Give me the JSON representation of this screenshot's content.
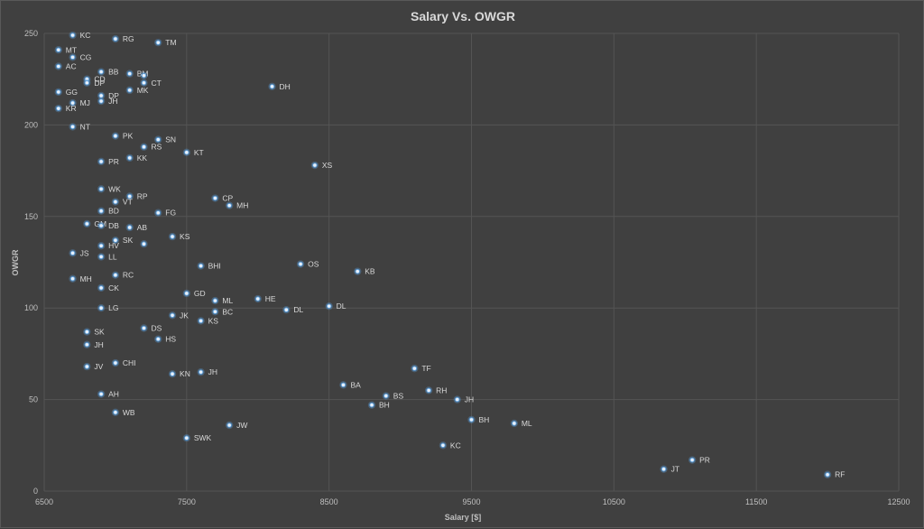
{
  "chart_data": {
    "type": "scatter",
    "title": "Salary Vs. OWGR",
    "xlabel": "Salary [$]",
    "ylabel": "OWGR",
    "xlim": [
      6500,
      12500
    ],
    "ylim": [
      0,
      250
    ],
    "xticks": [
      "6500",
      "7500",
      "8500",
      "9500",
      "10500",
      "11500",
      "12500"
    ],
    "yticks": [
      "0",
      "50",
      "100",
      "150",
      "200",
      "250"
    ],
    "grid": true,
    "marker_color": "#5b9bd5",
    "points": [
      {
        "x": 6700,
        "y": 249,
        "label": "KC"
      },
      {
        "x": 7000,
        "y": 247,
        "label": "RG"
      },
      {
        "x": 7300,
        "y": 245,
        "label": "TM"
      },
      {
        "x": 6600,
        "y": 241,
        "label": "MT"
      },
      {
        "x": 6700,
        "y": 237,
        "label": "CG"
      },
      {
        "x": 6600,
        "y": 232,
        "label": "AC"
      },
      {
        "x": 6900,
        "y": 229,
        "label": "BB"
      },
      {
        "x": 7100,
        "y": 228,
        "label": "BM"
      },
      {
        "x": 7200,
        "y": 227,
        "label": ""
      },
      {
        "x": 6800,
        "y": 225,
        "label": "CD"
      },
      {
        "x": 6800,
        "y": 223,
        "label": "DP"
      },
      {
        "x": 7200,
        "y": 223,
        "label": "CT"
      },
      {
        "x": 8100,
        "y": 221,
        "label": "DH"
      },
      {
        "x": 7100,
        "y": 219,
        "label": "MK"
      },
      {
        "x": 6600,
        "y": 218,
        "label": "GG"
      },
      {
        "x": 6900,
        "y": 216,
        "label": "DP"
      },
      {
        "x": 6900,
        "y": 213,
        "label": "JH"
      },
      {
        "x": 6700,
        "y": 212,
        "label": "MJ"
      },
      {
        "x": 6600,
        "y": 209,
        "label": "KR"
      },
      {
        "x": 6700,
        "y": 199,
        "label": "NT"
      },
      {
        "x": 7000,
        "y": 194,
        "label": "PK"
      },
      {
        "x": 7300,
        "y": 192,
        "label": "SN"
      },
      {
        "x": 7200,
        "y": 188,
        "label": "RS"
      },
      {
        "x": 7500,
        "y": 185,
        "label": "KT"
      },
      {
        "x": 7100,
        "y": 182,
        "label": "KK"
      },
      {
        "x": 6900,
        "y": 180,
        "label": "PR"
      },
      {
        "x": 8400,
        "y": 178,
        "label": "XS"
      },
      {
        "x": 6900,
        "y": 165,
        "label": "WK"
      },
      {
        "x": 7100,
        "y": 161,
        "label": "RP"
      },
      {
        "x": 7700,
        "y": 160,
        "label": "CP"
      },
      {
        "x": 7000,
        "y": 158,
        "label": "VT"
      },
      {
        "x": 7800,
        "y": 156,
        "label": "MH"
      },
      {
        "x": 6900,
        "y": 153,
        "label": "BD"
      },
      {
        "x": 7300,
        "y": 152,
        "label": "FG"
      },
      {
        "x": 6800,
        "y": 146,
        "label": "GM"
      },
      {
        "x": 6900,
        "y": 145,
        "label": "DB"
      },
      {
        "x": 7100,
        "y": 144,
        "label": "AB"
      },
      {
        "x": 7400,
        "y": 139,
        "label": "KS"
      },
      {
        "x": 7000,
        "y": 137,
        "label": "SK"
      },
      {
        "x": 7200,
        "y": 135,
        "label": ""
      },
      {
        "x": 6900,
        "y": 134,
        "label": "HV"
      },
      {
        "x": 6700,
        "y": 130,
        "label": "JS"
      },
      {
        "x": 6900,
        "y": 128,
        "label": "LL"
      },
      {
        "x": 8300,
        "y": 124,
        "label": "OS"
      },
      {
        "x": 7600,
        "y": 123,
        "label": "BHI"
      },
      {
        "x": 8700,
        "y": 120,
        "label": "KB"
      },
      {
        "x": 7000,
        "y": 118,
        "label": "RC"
      },
      {
        "x": 6700,
        "y": 116,
        "label": "MH"
      },
      {
        "x": 6900,
        "y": 111,
        "label": "CK"
      },
      {
        "x": 7500,
        "y": 108,
        "label": "GD"
      },
      {
        "x": 8000,
        "y": 105,
        "label": "HE"
      },
      {
        "x": 7700,
        "y": 104,
        "label": "ML"
      },
      {
        "x": 8500,
        "y": 101,
        "label": "DL"
      },
      {
        "x": 6900,
        "y": 100,
        "label": "LG"
      },
      {
        "x": 8200,
        "y": 99,
        "label": "DL"
      },
      {
        "x": 7700,
        "y": 98,
        "label": "BC"
      },
      {
        "x": 7400,
        "y": 96,
        "label": "JK"
      },
      {
        "x": 7600,
        "y": 93,
        "label": "KS"
      },
      {
        "x": 7200,
        "y": 89,
        "label": "DS"
      },
      {
        "x": 6800,
        "y": 87,
        "label": "SK"
      },
      {
        "x": 7300,
        "y": 83,
        "label": "HS"
      },
      {
        "x": 6800,
        "y": 80,
        "label": "JH"
      },
      {
        "x": 7000,
        "y": 70,
        "label": "CHI"
      },
      {
        "x": 6800,
        "y": 68,
        "label": "JV"
      },
      {
        "x": 9100,
        "y": 67,
        "label": "TF"
      },
      {
        "x": 7600,
        "y": 65,
        "label": "JH"
      },
      {
        "x": 7400,
        "y": 64,
        "label": "KN"
      },
      {
        "x": 8600,
        "y": 58,
        "label": "BA"
      },
      {
        "x": 9200,
        "y": 55,
        "label": "RH"
      },
      {
        "x": 6900,
        "y": 53,
        "label": "AH"
      },
      {
        "x": 8900,
        "y": 52,
        "label": "BS"
      },
      {
        "x": 9400,
        "y": 50,
        "label": "JH"
      },
      {
        "x": 8800,
        "y": 47,
        "label": "BH"
      },
      {
        "x": 7000,
        "y": 43,
        "label": "WB"
      },
      {
        "x": 9500,
        "y": 39,
        "label": "BH"
      },
      {
        "x": 9800,
        "y": 37,
        "label": "ML"
      },
      {
        "x": 7800,
        "y": 36,
        "label": "JW"
      },
      {
        "x": 7500,
        "y": 29,
        "label": "SWK"
      },
      {
        "x": 9300,
        "y": 25,
        "label": "KC"
      },
      {
        "x": 11050,
        "y": 17,
        "label": "PR"
      },
      {
        "x": 10850,
        "y": 12,
        "label": "JT"
      },
      {
        "x": 12000,
        "y": 9,
        "label": "RF"
      }
    ]
  }
}
